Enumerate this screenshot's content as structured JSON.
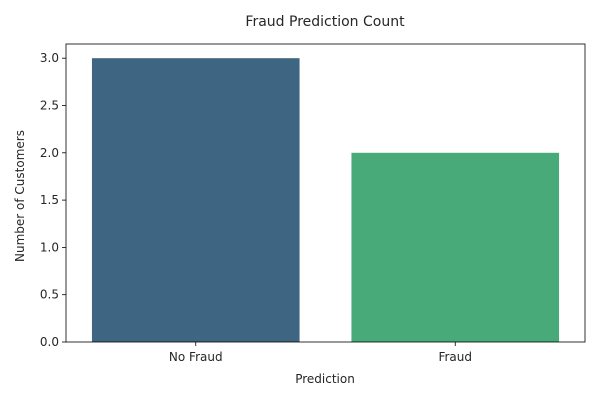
{
  "chart_data": {
    "type": "bar",
    "title": "Fraud Prediction Count",
    "xlabel": "Prediction",
    "ylabel": "Number of Customers",
    "categories": [
      "No Fraud",
      "Fraud"
    ],
    "values": [
      3,
      2
    ],
    "colors": [
      "#3e6683",
      "#47aa78"
    ],
    "ylim": [
      0,
      3.15
    ],
    "yticks": [
      "0.0",
      "0.5",
      "1.0",
      "1.5",
      "2.0",
      "2.5",
      "3.0"
    ],
    "grid": false,
    "legend": "none"
  }
}
